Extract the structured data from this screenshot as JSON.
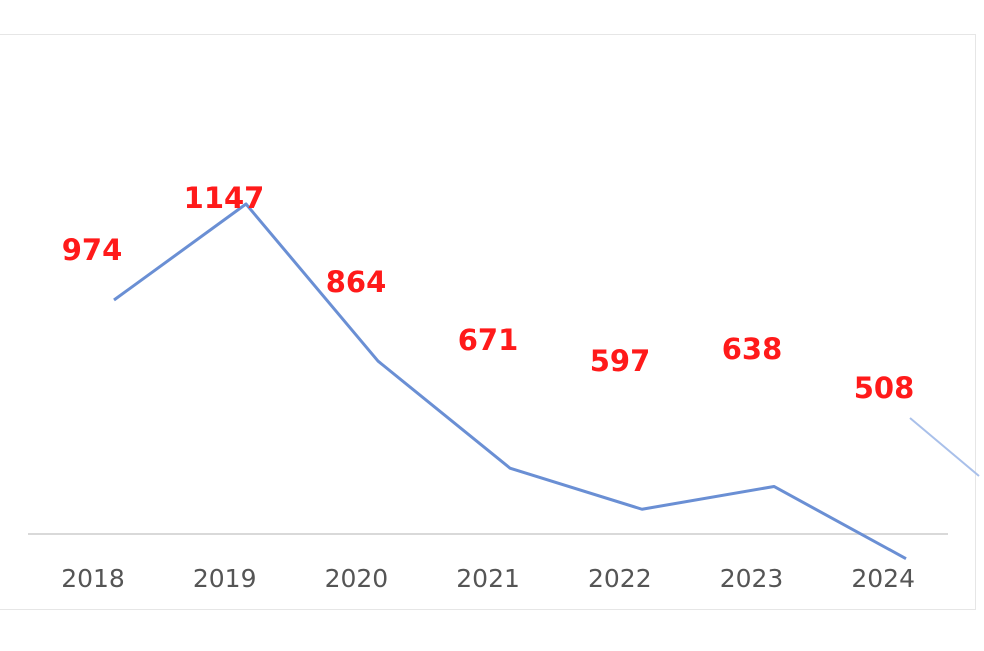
{
  "chart_data": {
    "type": "line",
    "title": "",
    "xlabel": "",
    "ylabel": "",
    "categories": [
      "2018",
      "2019",
      "2020",
      "2021",
      "2022",
      "2023",
      "2024"
    ],
    "series": [
      {
        "values": [
          974,
          1147,
          864,
          671,
          597,
          638,
          508
        ]
      }
    ],
    "data_labels": [
      "974",
      "1147",
      "864",
      "671",
      "597",
      "638",
      "508"
    ],
    "grid": false,
    "legend": "none",
    "colors": {
      "line": "#6a8fd4",
      "data_label": "#ff1a1a",
      "tick_label": "#555555",
      "axis": "#d9d9d9"
    }
  }
}
